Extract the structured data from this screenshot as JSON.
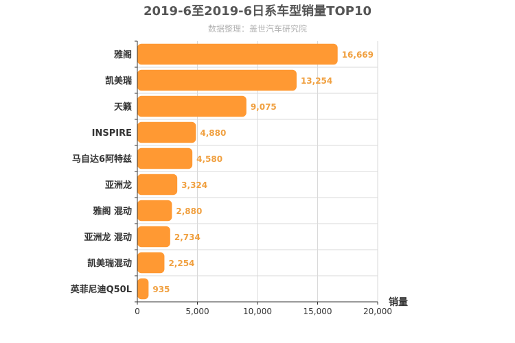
{
  "chart_data": {
    "type": "bar",
    "orientation": "horizontal",
    "title": "2019-6至2019-6日系车型销量TOP10",
    "subtitle": "数据整理：盖世汽车研究院",
    "xlabel": "销量",
    "ylabel": "",
    "categories": [
      "雅阁",
      "凯美瑞",
      "天籁",
      "INSPIRE",
      "马自达6阿特兹",
      "亚洲龙",
      "雅阁 混动",
      "亚洲龙 混动",
      "凯美瑞混动",
      "英菲尼迪Q50L"
    ],
    "values": [
      16669,
      13254,
      9075,
      4880,
      4580,
      3324,
      2880,
      2734,
      2254,
      935
    ],
    "value_labels": [
      "16,669",
      "13,254",
      "9,075",
      "4,880",
      "4,580",
      "3,324",
      "2,880",
      "2,734",
      "2,254",
      "935"
    ],
    "xlim": [
      0,
      20000
    ],
    "xticks": [
      0,
      5000,
      10000,
      15000,
      20000
    ],
    "xtick_labels": [
      "0",
      "5,000",
      "10,000",
      "15,000",
      "20,000"
    ],
    "grid": true,
    "bar_color": "#ff9933",
    "value_label_color": "#f0a040"
  }
}
